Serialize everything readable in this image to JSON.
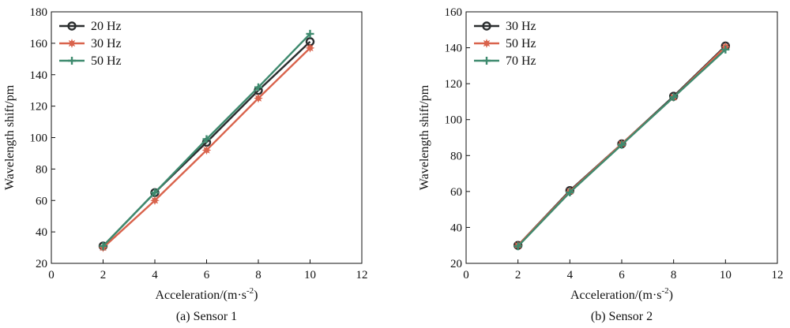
{
  "chart_data": [
    {
      "type": "line",
      "caption": "(a) Sensor 1",
      "xlabel": "Acceleration/(m·s",
      "xlabel_sup": "-2",
      "xlabel_close": ")",
      "ylabel": "Wavelength shift/pm",
      "xlim": [
        0,
        12
      ],
      "ylim": [
        20,
        180
      ],
      "xticks": [
        0,
        2,
        4,
        6,
        8,
        10,
        12
      ],
      "yticks": [
        20,
        40,
        60,
        80,
        100,
        120,
        140,
        160,
        180
      ],
      "grid": false,
      "legend_position": "top-left",
      "x": [
        2,
        4,
        6,
        8,
        10
      ],
      "series": [
        {
          "name": "20 Hz",
          "color": "#2b2e2f",
          "marker": "circle",
          "values": [
            31,
            65,
            97,
            130,
            161
          ]
        },
        {
          "name": "30 Hz",
          "color": "#d9634c",
          "marker": "star",
          "values": [
            30,
            60,
            92,
            125,
            157
          ]
        },
        {
          "name": "50 Hz",
          "color": "#3e8a6e",
          "marker": "plus",
          "values": [
            31,
            65,
            99,
            132,
            166
          ]
        }
      ]
    },
    {
      "type": "line",
      "caption": "(b) Sensor 2",
      "xlabel": "Acceleration/(m·s",
      "xlabel_sup": "-2",
      "xlabel_close": ")",
      "ylabel": "Wavelength shift/pm",
      "xlim": [
        0,
        12
      ],
      "ylim": [
        20,
        160
      ],
      "xticks": [
        0,
        2,
        4,
        6,
        8,
        10,
        12
      ],
      "yticks": [
        20,
        40,
        60,
        80,
        100,
        120,
        140,
        160
      ],
      "grid": false,
      "legend_position": "top-left",
      "x": [
        2,
        4,
        6,
        8,
        10
      ],
      "series": [
        {
          "name": "30 Hz",
          "color": "#2b2e2f",
          "marker": "circle",
          "values": [
            30,
            60.5,
            86.5,
            113,
            141
          ]
        },
        {
          "name": "50 Hz",
          "color": "#d9634c",
          "marker": "star",
          "values": [
            30,
            60,
            86.5,
            112.5,
            140.5
          ]
        },
        {
          "name": "70 Hz",
          "color": "#3e8a6e",
          "marker": "plus",
          "values": [
            29.5,
            59.5,
            86,
            112.5,
            139
          ]
        }
      ]
    }
  ]
}
